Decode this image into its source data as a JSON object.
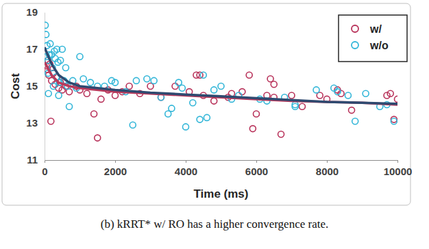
{
  "chart_data": {
    "type": "scatter",
    "caption": "(b) kRRT* w/ RO has a higher convergence rate.",
    "x_label": "Time (ms)",
    "y_label": "Cost",
    "xlim": [
      0,
      10000
    ],
    "ylim": [
      11,
      19
    ],
    "xticks": [
      0,
      2000,
      4000,
      6000,
      8000,
      10000
    ],
    "yticks": [
      11,
      13,
      15,
      17,
      19
    ],
    "grid": false,
    "legend": "top-right",
    "series": [
      {
        "name": "w/",
        "type": "scatter",
        "marker": "circle",
        "color": "#b8325a",
        "x": [
          50,
          80,
          100,
          120,
          150,
          180,
          200,
          250,
          300,
          350,
          400,
          450,
          500,
          600,
          700,
          900,
          1000,
          1200,
          1400,
          1500,
          1600,
          1800,
          2000,
          2200,
          2400,
          2700,
          3000,
          3300,
          3700,
          4100,
          4300,
          4400,
          4500,
          4800,
          5200,
          5300,
          5600,
          5800,
          5900,
          6000,
          6300,
          6400,
          6500,
          6500,
          6700,
          7000,
          7300,
          7800,
          8000,
          8300,
          8400,
          8700,
          9700,
          9800,
          9900,
          10000
        ],
        "values": [
          16.1,
          15.9,
          16.4,
          15.6,
          16.2,
          13.1,
          15.3,
          15.7,
          15.1,
          15.5,
          14.9,
          15.2,
          14.8,
          15.0,
          14.7,
          15.0,
          14.8,
          14.6,
          13.5,
          12.2,
          14.3,
          14.8,
          14.5,
          14.7,
          15.0,
          14.6,
          15.0,
          14.4,
          15.0,
          14.7,
          15.6,
          15.6,
          14.5,
          14.2,
          14.4,
          14.6,
          14.7,
          15.6,
          12.7,
          13.5,
          14.5,
          15.4,
          14.4,
          15.1,
          12.4,
          14.5,
          13.9,
          14.5,
          14.3,
          14.8,
          14.6,
          13.7,
          14.5,
          14.6,
          13.2,
          14.3
        ]
      },
      {
        "name": "w/o",
        "type": "scatter",
        "marker": "circle",
        "color": "#33b6d8",
        "x": [
          20,
          40,
          60,
          70,
          90,
          100,
          110,
          130,
          160,
          200,
          220,
          250,
          280,
          300,
          330,
          350,
          380,
          400,
          420,
          450,
          500,
          550,
          600,
          650,
          700,
          800,
          900,
          1000,
          1100,
          1300,
          1500,
          1700,
          1900,
          2000,
          2300,
          2500,
          2600,
          2900,
          3100,
          3300,
          3500,
          3600,
          3800,
          3900,
          4000,
          4200,
          4400,
          4500,
          4600,
          4800,
          5000,
          5300,
          5500,
          6100,
          6300,
          6800,
          7100,
          7100,
          7700,
          8200,
          8300,
          8600,
          8800,
          9100,
          9500,
          9700,
          9900
        ],
        "values": [
          18.3,
          17.8,
          16.6,
          17.2,
          16.4,
          15.7,
          14.6,
          16.7,
          17.3,
          16.7,
          16.0,
          15.0,
          16.9,
          16.5,
          15.5,
          17.0,
          16.3,
          14.5,
          15.2,
          16.4,
          17.0,
          15.3,
          16.0,
          15.0,
          13.9,
          15.3,
          14.9,
          16.6,
          15.4,
          15.2,
          15.0,
          15.0,
          15.3,
          15.2,
          14.7,
          12.9,
          15.3,
          15.4,
          15.3,
          14.4,
          13.5,
          13.8,
          15.2,
          14.9,
          12.8,
          14.1,
          13.2,
          15.6,
          13.3,
          14.8,
          15.0,
          14.3,
          14.5,
          14.3,
          14.2,
          14.4,
          14.0,
          13.9,
          14.8,
          14.9,
          14.7,
          14.5,
          13.1,
          14.6,
          13.9,
          14.0,
          13.1
        ]
      },
      {
        "type": "line",
        "line_style": "solid",
        "color": "#b83a5c",
        "x": [
          0,
          200,
          400,
          700,
          1000,
          2000,
          3000,
          4000,
          5000,
          6000,
          7000,
          8000,
          9000,
          10000
        ],
        "values": [
          16.3,
          15.6,
          15.2,
          15.0,
          14.9,
          14.7,
          14.6,
          14.5,
          14.4,
          14.3,
          14.2,
          14.15,
          14.1,
          14.0
        ]
      },
      {
        "type": "line",
        "line_style": "solid",
        "color": "#2e4a70",
        "x": [
          0,
          200,
          400,
          700,
          1000,
          2000,
          3000,
          4000,
          5000,
          6000,
          7000,
          8000,
          9000,
          10000
        ],
        "values": [
          17.1,
          16.2,
          15.6,
          15.2,
          15.0,
          14.8,
          14.65,
          14.55,
          14.45,
          14.35,
          14.25,
          14.15,
          14.1,
          14.05
        ]
      }
    ]
  }
}
